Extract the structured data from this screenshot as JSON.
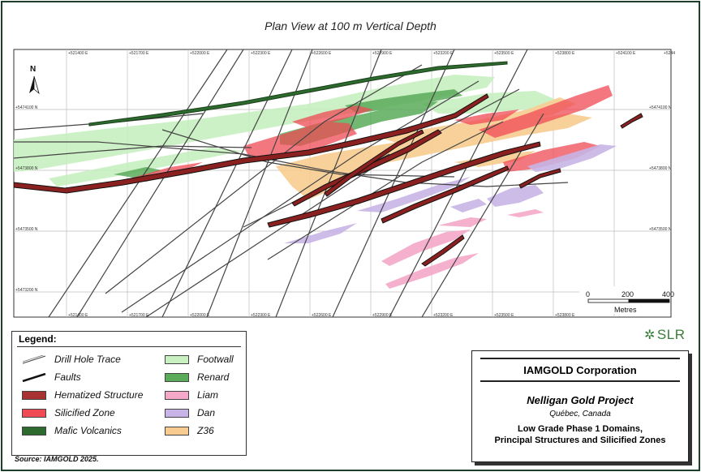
{
  "map": {
    "title": "Plan View at 100 m Vertical Depth",
    "north_label": "N",
    "eastings_top": [
      "+521400 E",
      "+521700 E",
      "+522000 E",
      "+522300 E",
      "+522600 E",
      "+522900 E",
      "+523200 E",
      "+523500 E",
      "+523800 E",
      "+524100 E",
      "+5244"
    ],
    "eastings_bottom": [
      "+521400 E",
      "+521700 E",
      "+522000 E",
      "+522300 E",
      "+522600 E",
      "+522900 E",
      "+523200 E",
      "+523500 E",
      "+523800 E"
    ],
    "northings_left": [
      "+5474100 N",
      "+5473800 N",
      "+5473500 N",
      "+5473200 N"
    ],
    "northings_right": [
      "+5474100 N",
      "+5473800 N",
      "+5473500 N"
    ],
    "scale_bar": {
      "ticks": [
        "0",
        "200",
        "400"
      ],
      "unit": "Metres"
    }
  },
  "legend": {
    "title": "Legend:",
    "items": [
      {
        "label": "Drill Hole Trace",
        "color": "#ffffff",
        "kind": "line-thin"
      },
      {
        "label": "Faults",
        "color": "#111111",
        "kind": "line-thick"
      },
      {
        "label": "Hematized Structure",
        "color": "#a83232",
        "kind": "fill"
      },
      {
        "label": "Silicified Zone",
        "color": "#f04a55",
        "kind": "fill"
      },
      {
        "label": "Mafic Volcanics",
        "color": "#2d6a2d",
        "kind": "fill"
      },
      {
        "label": "Footwall",
        "color": "#c8f0c0",
        "kind": "fill"
      },
      {
        "label": "Renard",
        "color": "#5aab5a",
        "kind": "fill"
      },
      {
        "label": "Liam",
        "color": "#f5a8c8",
        "kind": "fill"
      },
      {
        "label": "Dan",
        "color": "#c8b4e6",
        "kind": "fill"
      },
      {
        "label": "Z36",
        "color": "#f8cc90",
        "kind": "fill"
      }
    ]
  },
  "source": "Source: IAMGOLD 2025.",
  "logo": {
    "text": "SLR",
    "icon": "slr-star-icon"
  },
  "title_block": {
    "company": "IAMGOLD Corporation",
    "project": "Nelligan Gold Project",
    "location": "Québec, Canada",
    "description_line1": "Low Grade Phase 1 Domains,",
    "description_line2": "Principal Structures and Silicified Zones"
  }
}
